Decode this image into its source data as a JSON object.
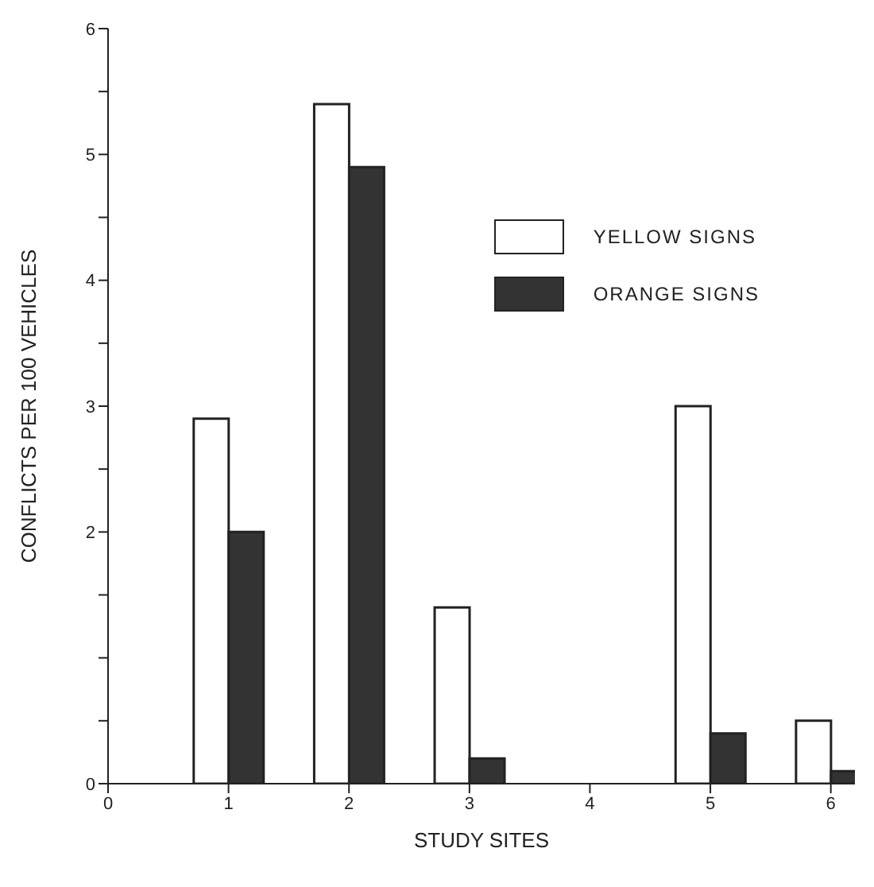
{
  "chart_data": {
    "type": "bar",
    "xlabel": "STUDY SITES",
    "ylabel": "CONFLICTS PER 100 VEHICLES",
    "x": [
      1,
      2,
      3,
      4,
      5,
      6
    ],
    "series": [
      {
        "name": "YELLOW SIGNS",
        "color": "#ffffff",
        "values": [
          2.9,
          5.4,
          1.4,
          null,
          3.0,
          0.5
        ]
      },
      {
        "name": "ORANGE SIGNS",
        "color": "#333333",
        "values": [
          2.0,
          4.9,
          0.2,
          null,
          0.4,
          0.1
        ]
      }
    ],
    "xlim": [
      0,
      6.2
    ],
    "xticks": [
      0,
      1,
      2,
      3,
      4,
      5,
      6
    ],
    "ylim": [
      0,
      6
    ],
    "yticks": [
      0,
      {
        "value": 0.5,
        "label": null
      },
      {
        "value": 1,
        "label": null
      },
      {
        "value": 1.5,
        "label": null
      },
      2,
      {
        "value": 2.5,
        "label": null
      },
      3,
      {
        "value": 3.5,
        "label": null
      },
      4,
      {
        "value": 4.5,
        "label": null
      },
      5,
      {
        "value": 5.5,
        "label": null
      },
      6
    ],
    "grid": false,
    "legend": "top right"
  }
}
